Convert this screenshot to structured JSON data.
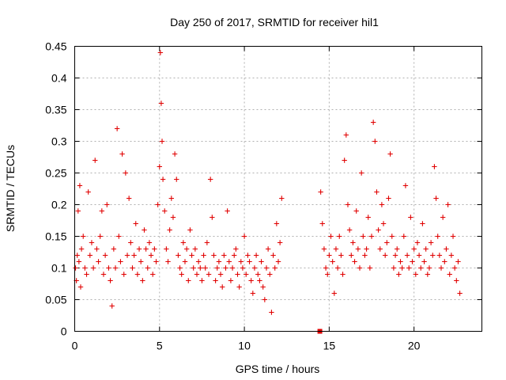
{
  "chart_data": {
    "type": "scatter",
    "title": "Day 250 of 2017, SRMTID for receiver hil1",
    "xlabel": "GPS time / hours",
    "ylabel": "SRMTID / TECUs",
    "xlim": [
      0,
      24
    ],
    "ylim": [
      0,
      0.45
    ],
    "xticks": [
      0,
      5,
      10,
      15,
      20
    ],
    "yticks": [
      0,
      0.05,
      0.1,
      0.15,
      0.2,
      0.25,
      0.3,
      0.35,
      0.4,
      0.45
    ],
    "grid": true,
    "marker": "plus",
    "color": "#e00000",
    "data_gap": [
      12.3,
      14.4
    ],
    "series": [
      {
        "x": [
          0.05,
          0.1,
          0.15,
          0.2,
          0.25,
          0.3,
          0.35,
          0.4,
          0.5,
          0.6,
          0.7,
          0.8,
          0.9,
          1.0,
          1.1,
          1.2,
          1.3,
          1.4,
          1.5,
          1.6,
          1.7,
          1.8,
          1.9,
          2.0,
          2.1,
          2.2,
          2.3,
          2.4,
          2.5,
          2.6,
          2.7,
          2.8,
          2.9,
          3.0,
          3.1,
          3.2,
          3.3,
          3.4,
          3.5,
          3.6,
          3.7,
          3.8,
          3.9,
          4.0,
          4.1,
          4.2,
          4.3,
          4.4,
          4.5,
          4.6,
          4.7,
          4.8,
          4.9,
          5.0,
          5.05,
          5.1,
          5.15,
          5.2,
          5.3,
          5.4,
          5.5,
          5.6,
          5.7,
          5.8,
          5.9,
          6.0,
          6.1,
          6.2,
          6.3,
          6.4,
          6.5,
          6.6,
          6.7,
          6.8,
          6.9,
          7.0,
          7.1,
          7.2,
          7.3,
          7.4,
          7.5,
          7.6,
          7.7,
          7.8,
          7.9,
          8.0,
          8.1,
          8.2,
          8.3,
          8.4,
          8.5,
          8.6,
          8.7,
          8.8,
          8.9,
          9.0,
          9.1,
          9.2,
          9.3,
          9.4,
          9.5,
          9.6,
          9.7,
          9.8,
          9.9,
          10.0,
          10.1,
          10.2,
          10.3,
          10.4,
          10.5,
          10.6,
          10.7,
          10.8,
          10.9,
          11.0,
          11.1,
          11.2,
          11.3,
          11.4,
          11.5,
          11.6,
          11.7,
          11.8,
          11.9,
          12.0,
          12.1,
          12.2,
          14.45,
          14.5,
          14.6,
          14.7,
          14.8,
          14.9,
          15.0,
          15.1,
          15.2,
          15.3,
          15.4,
          15.5,
          15.6,
          15.7,
          15.8,
          15.9,
          16.0,
          16.1,
          16.2,
          16.3,
          16.4,
          16.5,
          16.6,
          16.7,
          16.8,
          16.9,
          17.0,
          17.1,
          17.2,
          17.3,
          17.4,
          17.5,
          17.6,
          17.7,
          17.8,
          17.9,
          18.0,
          18.1,
          18.2,
          18.3,
          18.4,
          18.5,
          18.6,
          18.7,
          18.8,
          18.9,
          19.0,
          19.1,
          19.2,
          19.3,
          19.4,
          19.5,
          19.6,
          19.7,
          19.8,
          19.9,
          20.0,
          20.1,
          20.2,
          20.3,
          20.4,
          20.5,
          20.6,
          20.7,
          20.8,
          20.9,
          21.0,
          21.1,
          21.2,
          21.3,
          21.4,
          21.5,
          21.6,
          21.7,
          21.8,
          21.9,
          22.0,
          22.1,
          22.2,
          22.3,
          22.4,
          22.5,
          22.6,
          22.7
        ],
        "y": [
          0.1,
          0.08,
          0.12,
          0.19,
          0.11,
          0.23,
          0.07,
          0.13,
          0.15,
          0.1,
          0.09,
          0.22,
          0.12,
          0.14,
          0.1,
          0.27,
          0.13,
          0.11,
          0.15,
          0.19,
          0.09,
          0.12,
          0.2,
          0.1,
          0.08,
          0.04,
          0.13,
          0.1,
          0.32,
          0.15,
          0.11,
          0.28,
          0.09,
          0.25,
          0.12,
          0.21,
          0.14,
          0.1,
          0.12,
          0.17,
          0.09,
          0.13,
          0.11,
          0.08,
          0.16,
          0.13,
          0.1,
          0.14,
          0.12,
          0.09,
          0.13,
          0.11,
          0.2,
          0.26,
          0.44,
          0.36,
          0.3,
          0.24,
          0.19,
          0.13,
          0.11,
          0.16,
          0.21,
          0.18,
          0.28,
          0.24,
          0.12,
          0.1,
          0.09,
          0.14,
          0.11,
          0.13,
          0.08,
          0.16,
          0.12,
          0.1,
          0.13,
          0.09,
          0.11,
          0.1,
          0.08,
          0.12,
          0.1,
          0.14,
          0.09,
          0.24,
          0.18,
          0.12,
          0.08,
          0.1,
          0.11,
          0.09,
          0.07,
          0.12,
          0.1,
          0.19,
          0.11,
          0.08,
          0.1,
          0.12,
          0.13,
          0.09,
          0.07,
          0.11,
          0.1,
          0.15,
          0.09,
          0.12,
          0.11,
          0.08,
          0.06,
          0.1,
          0.12,
          0.09,
          0.08,
          0.11,
          0.07,
          0.05,
          0.1,
          0.13,
          0.09,
          0.03,
          0.12,
          0.1,
          0.17,
          0.11,
          0.14,
          0.21,
          0.0,
          0.22,
          0.17,
          0.13,
          0.1,
          0.09,
          0.12,
          0.15,
          0.11,
          0.06,
          0.13,
          0.1,
          0.15,
          0.12,
          0.09,
          0.27,
          0.31,
          0.2,
          0.16,
          0.12,
          0.14,
          0.11,
          0.19,
          0.13,
          0.1,
          0.25,
          0.15,
          0.12,
          0.13,
          0.18,
          0.1,
          0.15,
          0.33,
          0.3,
          0.22,
          0.16,
          0.13,
          0.2,
          0.17,
          0.12,
          0.14,
          0.21,
          0.28,
          0.15,
          0.1,
          0.12,
          0.13,
          0.09,
          0.11,
          0.1,
          0.15,
          0.23,
          0.12,
          0.1,
          0.18,
          0.11,
          0.13,
          0.09,
          0.14,
          0.12,
          0.1,
          0.17,
          0.11,
          0.13,
          0.09,
          0.1,
          0.14,
          0.12,
          0.26,
          0.21,
          0.15,
          0.12,
          0.1,
          0.18,
          0.11,
          0.13,
          0.2,
          0.09,
          0.12,
          0.15,
          0.1,
          0.08,
          0.11,
          0.06
        ]
      }
    ]
  }
}
